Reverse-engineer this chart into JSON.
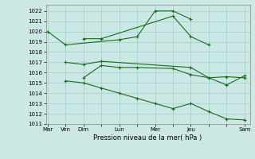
{
  "xlabel": "Pression niveau de la mer( hPa )",
  "bg_color": "#cce8e5",
  "grid_color": "#9ecece",
  "line_color": "#1a6b1a",
  "ylim_low": 1011,
  "ylim_high": 1022.6,
  "xlim_low": -0.1,
  "xlim_high": 11.3,
  "yticks": [
    1011,
    1012,
    1013,
    1014,
    1015,
    1016,
    1017,
    1018,
    1019,
    1020,
    1021,
    1022
  ],
  "xtick_pos": [
    0,
    1,
    2,
    3,
    4,
    5,
    6,
    7,
    8,
    9,
    10,
    11
  ],
  "xtick_lab": [
    "Mar",
    "Ven",
    "Dim",
    "",
    "Lun",
    "",
    "Mer",
    "",
    "Jeu",
    "",
    "",
    "Sam"
  ],
  "series": [
    {
      "x": [
        0,
        1,
        4,
        5,
        6,
        7,
        8
      ],
      "y": [
        1020.0,
        1018.7,
        1019.2,
        1019.5,
        1022.0,
        1022.0,
        1021.2
      ]
    },
    {
      "x": [
        2,
        3,
        7,
        8,
        9
      ],
      "y": [
        1019.3,
        1019.3,
        1021.5,
        1019.5,
        1018.7
      ]
    },
    {
      "x": [
        1,
        2,
        3,
        8,
        9,
        10,
        11
      ],
      "y": [
        1017.0,
        1016.8,
        1017.1,
        1016.5,
        1015.5,
        1015.6,
        1015.5
      ]
    },
    {
      "x": [
        2,
        3,
        4,
        5,
        7,
        8,
        9,
        10,
        11
      ],
      "y": [
        1015.5,
        1016.7,
        1016.5,
        1016.5,
        1016.4,
        1015.8,
        1015.5,
        1014.8,
        1015.7
      ]
    },
    {
      "x": [
        1,
        2,
        3,
        4,
        5,
        6,
        7,
        8,
        9,
        10,
        11
      ],
      "y": [
        1015.2,
        1015.0,
        1014.5,
        1014.0,
        1013.5,
        1013.0,
        1012.5,
        1013.0,
        1012.2,
        1011.5,
        1011.4
      ]
    }
  ]
}
